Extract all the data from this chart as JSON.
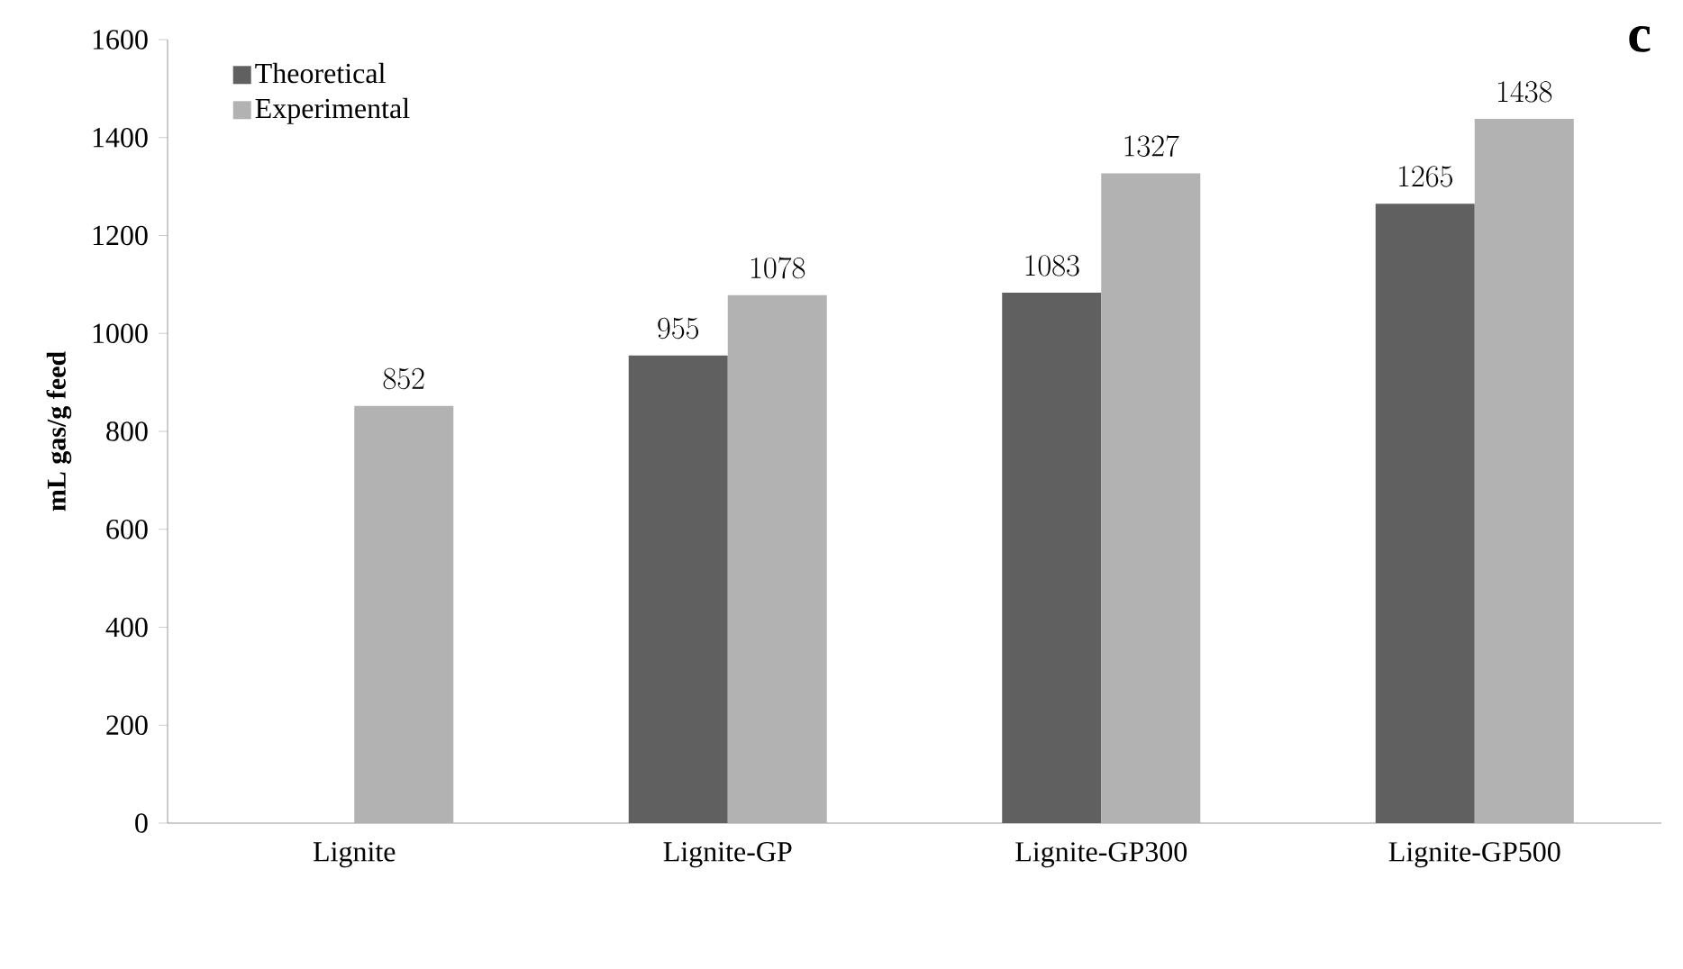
{
  "chart_data": {
    "type": "bar",
    "ylabel": "mL gas/g feed",
    "categories": [
      "Lignite",
      "Lignite-GP",
      "Lignite-GP300",
      "Lignite-GP500"
    ],
    "series": [
      {
        "name": "Theoretical",
        "color": "#606060",
        "values": [
          null,
          955,
          1083,
          1265
        ]
      },
      {
        "name": "Experimental",
        "color": "#b2b2b2",
        "values": [
          852,
          1078,
          1327,
          1438
        ]
      }
    ],
    "ylim": [
      0,
      1600
    ],
    "yticks": [
      0,
      200,
      400,
      600,
      800,
      1000,
      1200,
      1400,
      1600
    ],
    "data_labels": true,
    "legend": "top left",
    "grid": false,
    "annotations": [
      "c"
    ]
  }
}
